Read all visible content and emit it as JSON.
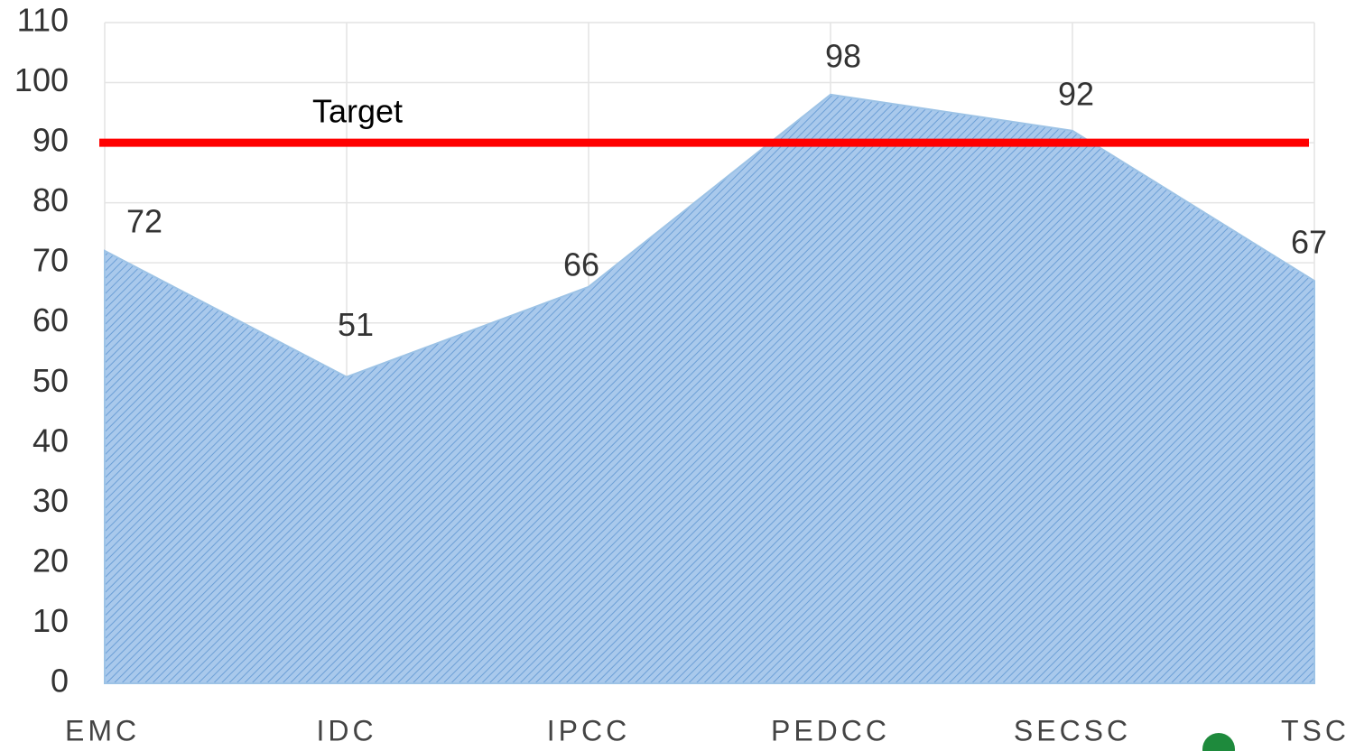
{
  "chart_data": {
    "type": "area",
    "categories": [
      "EMC",
      "IDC",
      "IPCC",
      "PEDCC",
      "SECSC",
      "TSC"
    ],
    "values": [
      72,
      51,
      66,
      98,
      92,
      67
    ],
    "color": "#9dc3e6",
    "ylim": [
      0,
      110
    ],
    "yticks": [
      0,
      10,
      20,
      30,
      40,
      50,
      60,
      70,
      80,
      90,
      100,
      110
    ],
    "grid": true,
    "target": {
      "label": "Target",
      "value": 90,
      "color": "#ff0000"
    }
  }
}
